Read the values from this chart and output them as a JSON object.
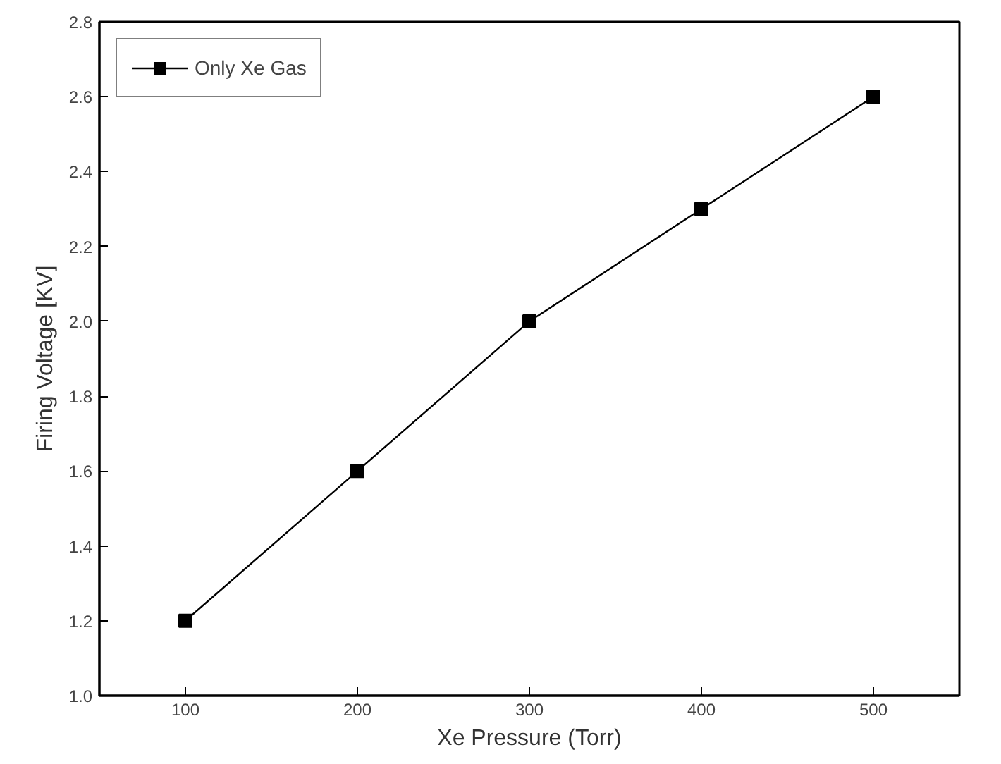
{
  "chart_data": {
    "type": "line",
    "xlabel": "Xe Pressure (Torr)",
    "ylabel": "Firing Voltage [KV]",
    "x": [
      100,
      200,
      300,
      400,
      500
    ],
    "series": [
      {
        "name": "Only Xe Gas",
        "color": "#000000",
        "values": [
          1.2,
          1.6,
          2.0,
          2.3,
          2.6
        ]
      }
    ],
    "xlim": [
      50,
      550
    ],
    "xticks": [
      100,
      200,
      300,
      400,
      500
    ],
    "ylim": [
      1.0,
      2.8
    ],
    "yticks": [
      {
        "value": 1.0,
        "label": "1.0"
      },
      1.2,
      1.4,
      1.6,
      1.8,
      {
        "value": 2.0,
        "label": "2.0"
      },
      2.2,
      2.4,
      2.6,
      {
        "value": 2.8,
        "label": "2.8"
      }
    ],
    "marker": "square",
    "line_style": "solid",
    "legend": "top left",
    "grid": false
  }
}
